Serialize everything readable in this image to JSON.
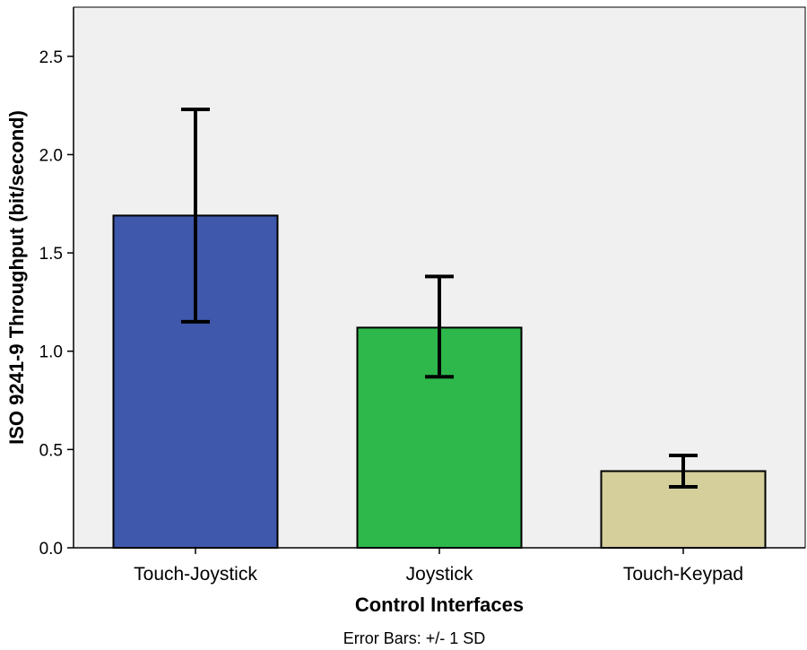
{
  "chart_data": {
    "type": "bar",
    "categories": [
      "Touch-Joystick",
      "Joystick",
      "Touch-Keypad"
    ],
    "values": [
      1.69,
      1.12,
      0.39
    ],
    "error_bars": {
      "lower": [
        1.15,
        0.87,
        0.31
      ],
      "upper": [
        2.23,
        1.38,
        0.47
      ]
    },
    "colors": [
      "#3F58AB",
      "#2EB84B",
      "#D4CF9B"
    ],
    "xlabel": "Control Interfaces",
    "ylabel": "ISO 9241-9 Throughput (bit/second)",
    "ylim": [
      0,
      2.75
    ],
    "yticks": [
      0.0,
      0.5,
      1.0,
      1.5,
      2.0,
      2.5
    ],
    "ytick_labels": [
      "0.0",
      "0.5",
      "1.0",
      "1.5",
      "2.0",
      "2.5"
    ],
    "footnote": "Error Bars: +/- 1 SD",
    "plot_background": "#F0F0F0",
    "grid": false,
    "legend": "none"
  }
}
